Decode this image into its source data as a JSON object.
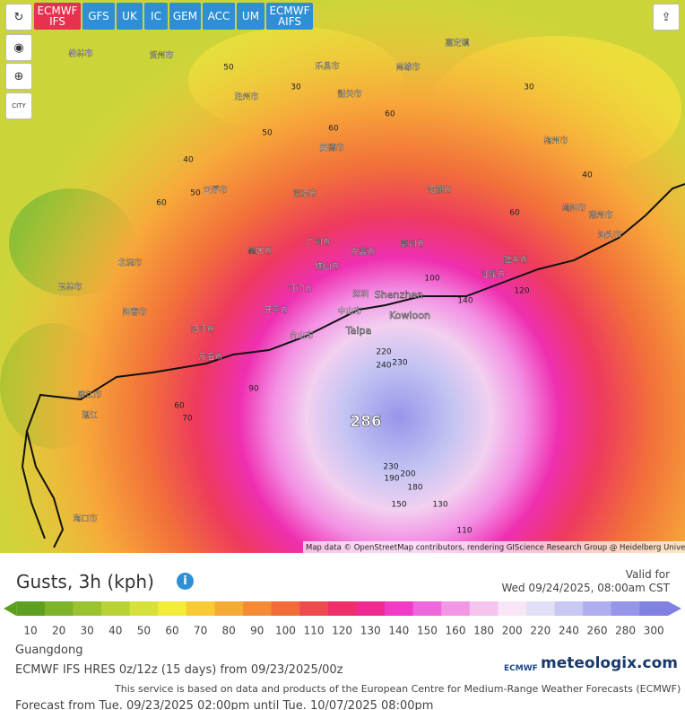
{
  "toolbar": {
    "models": [
      {
        "label": "ECMWF IFS",
        "active": true
      },
      {
        "label": "GFS",
        "active": false
      },
      {
        "label": "UK",
        "active": false
      },
      {
        "label": "IC",
        "active": false
      },
      {
        "label": "GEM",
        "active": false
      },
      {
        "label": "ACC",
        "active": false
      },
      {
        "label": "UM",
        "active": false
      },
      {
        "label": "ECMWF AIFS",
        "active": false
      }
    ],
    "city_button": "CITY"
  },
  "map": {
    "peak": "286",
    "places": [
      "桂林市",
      "贺州市",
      "连州市",
      "乐昌市",
      "南雄市",
      "嘉定镇",
      "梅州市",
      "韶关市",
      "河源市",
      "清远市",
      "英德市",
      "广州市",
      "肇庆市",
      "佛山市",
      "东莞市",
      "惠州市",
      "深圳",
      "Shenzhen",
      "Kowloon",
      "Taipa",
      "中山市",
      "江门市",
      "开平市",
      "台山市",
      "阳江市",
      "阳春市",
      "茂名市",
      "湛江",
      "汕尾市",
      "陆丰市",
      "揭阳市",
      "汕头市",
      "潮州市",
      "云浮市",
      "玉林市",
      "北流市",
      "廉江市",
      "海口市"
    ],
    "contours": [
      286,
      240,
      230,
      220,
      230,
      200,
      190,
      180,
      150,
      130,
      110,
      140,
      120,
      100,
      90,
      70,
      60,
      50,
      60,
      50,
      30,
      40,
      60,
      40,
      30,
      60,
      60,
      50
    ]
  },
  "attribution": "Map data © OpenStreetMap contributors, rendering GIScience Research Group @ Heidelberg University",
  "legend": {
    "title": "Gusts, 3h (kph)",
    "valid_label": "Valid for",
    "valid_time": "Wed 09/24/2025, 08:00am CST",
    "ticks": [
      10,
      20,
      30,
      40,
      50,
      60,
      70,
      80,
      90,
      100,
      110,
      120,
      130,
      140,
      150,
      160,
      180,
      200,
      220,
      240,
      260,
      280,
      300
    ],
    "colors": [
      "#5d9f1f",
      "#7db42a",
      "#9bc331",
      "#b9d236",
      "#d8e03b",
      "#f3ec38",
      "#f8cb36",
      "#f7ab37",
      "#f48c35",
      "#f16c39",
      "#ee4b4f",
      "#ee2f69",
      "#ef2a93",
      "#f03bc6",
      "#ee67dc",
      "#f297e6",
      "#f5c4ef",
      "#f8e6f7",
      "#e2e0f6",
      "#c8c8f3",
      "#aeaef0",
      "#9595ea",
      "#8181e1"
    ]
  },
  "footer": {
    "region": "Guangdong",
    "model": "ECMWF IFS HRES 0z/12z  (15 days) from 09/23/2025/00z",
    "notice": "This service is based on data and products of the European Centre for Medium-Range Weather Forecasts (ECMWF)",
    "forecast": "Forecast from Tue. 09/23/2025 02:00pm until Tue. 10/07/2025 08:00pm",
    "ecmwf": "ECMWF",
    "brand": "meteologix.com"
  }
}
